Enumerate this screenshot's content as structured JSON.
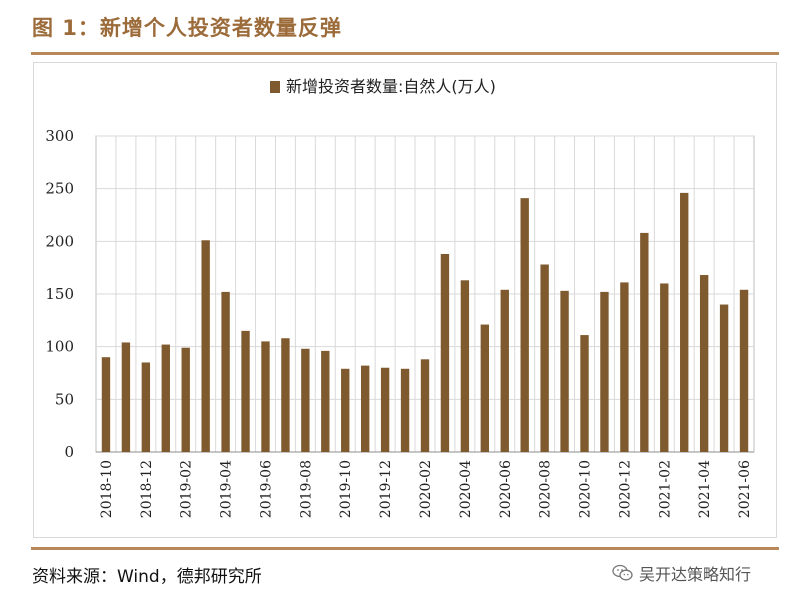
{
  "figure_title": "图 1：新增个人投资者数量反弹",
  "source_text": "资料来源：Wind，德邦研究所",
  "watermark_text": "吴开达策略知行",
  "colors": {
    "bar": "#7F5A2E",
    "accent": "#9C6B3A",
    "rule": "#B8875A",
    "grid": "#d9d9d9"
  },
  "chart_data": {
    "type": "bar",
    "title": "",
    "xlabel": "",
    "ylabel": "",
    "ylim": [
      0,
      300
    ],
    "yticks": [
      0,
      50,
      100,
      150,
      200,
      250,
      300
    ],
    "legend": {
      "position": "top-center",
      "entries": [
        "新增投资者数量:自然人(万人)"
      ]
    },
    "categories": [
      "2018-10",
      "2018-11",
      "2018-12",
      "2019-01",
      "2019-02",
      "2019-03",
      "2019-04",
      "2019-05",
      "2019-06",
      "2019-07",
      "2019-08",
      "2019-09",
      "2019-10",
      "2019-11",
      "2019-12",
      "2020-01",
      "2020-02",
      "2020-03",
      "2020-04",
      "2020-05",
      "2020-06",
      "2020-07",
      "2020-08",
      "2020-09",
      "2020-10",
      "2020-11",
      "2020-12",
      "2021-01",
      "2021-02",
      "2021-03",
      "2021-04",
      "2021-05",
      "2021-06"
    ],
    "tick_labels": [
      "2018-10",
      "2018-12",
      "2019-02",
      "2019-04",
      "2019-06",
      "2019-08",
      "2019-10",
      "2019-12",
      "2020-02",
      "2020-04",
      "2020-06",
      "2020-08",
      "2020-10",
      "2020-12",
      "2021-02",
      "2021-04",
      "2021-06"
    ],
    "series": [
      {
        "name": "新增投资者数量:自然人(万人)",
        "values": [
          90,
          104,
          85,
          102,
          99,
          201,
          152,
          115,
          105,
          108,
          98,
          96,
          79,
          82,
          80,
          79,
          88,
          188,
          163,
          121,
          154,
          241,
          178,
          153,
          111,
          152,
          161,
          208,
          160,
          246,
          168,
          140,
          154
        ]
      }
    ],
    "grid": true
  }
}
